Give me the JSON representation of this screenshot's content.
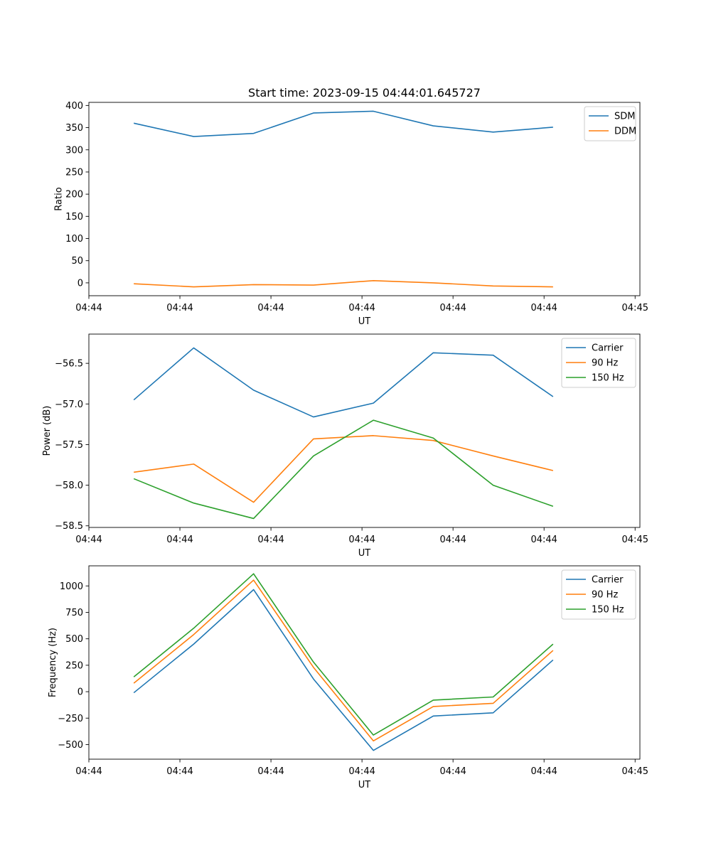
{
  "figure": {
    "title": "Start time: 2023-09-15 04:44:01.645727"
  },
  "chart_data": [
    {
      "type": "line",
      "id": "ratio",
      "ylabel": "Ratio",
      "xlabel": "UT",
      "x": [
        0,
        1,
        2,
        3,
        4,
        5,
        6,
        7
      ],
      "xlim": [
        -0.75,
        8.45
      ],
      "xticks": [
        -0.75,
        0.77,
        2.29,
        3.81,
        5.33,
        6.85,
        8.37
      ],
      "xtick_labels": [
        "04:44",
        "04:44",
        "04:44",
        "04:44",
        "04:44",
        "04:44",
        "04:45"
      ],
      "ylim": [
        -29,
        407
      ],
      "yticks": [
        0,
        50,
        100,
        150,
        200,
        250,
        300,
        350,
        400
      ],
      "ytick_labels": [
        "0",
        "50",
        "100",
        "150",
        "200",
        "250",
        "300",
        "350",
        "400"
      ],
      "legend_position": "top-right",
      "series": [
        {
          "name": "SDM",
          "color": "#1f77b4",
          "values": [
            360,
            330,
            337,
            383,
            387,
            354,
            340,
            351
          ]
        },
        {
          "name": "DDM",
          "color": "#ff7f0e",
          "values": [
            -2,
            -9,
            -4,
            -5,
            5,
            0,
            -7,
            -9
          ]
        }
      ]
    },
    {
      "type": "line",
      "id": "power",
      "ylabel": "Power (dB)",
      "xlabel": "UT",
      "x": [
        0,
        1,
        2,
        3,
        4,
        5,
        6,
        7
      ],
      "xlim": [
        -0.75,
        8.45
      ],
      "xticks": [
        -0.75,
        0.77,
        2.29,
        3.81,
        5.33,
        6.85,
        8.37
      ],
      "xtick_labels": [
        "04:44",
        "04:44",
        "04:44",
        "04:44",
        "04:44",
        "04:44",
        "04:45"
      ],
      "ylim": [
        -58.52,
        -56.14
      ],
      "yticks": [
        -58.5,
        -58.0,
        -57.5,
        -57.0,
        -56.5
      ],
      "ytick_labels": [
        "−58.5",
        "−58.0",
        "−57.5",
        "−57.0",
        "−56.5"
      ],
      "legend_position": "top-right",
      "series": [
        {
          "name": "Carrier",
          "color": "#1f77b4",
          "values": [
            -56.95,
            -56.31,
            -56.83,
            -57.16,
            -56.99,
            -56.37,
            -56.4,
            -56.91
          ]
        },
        {
          "name": "90 Hz",
          "color": "#ff7f0e",
          "values": [
            -57.84,
            -57.74,
            -58.21,
            -57.43,
            -57.39,
            -57.45,
            -57.64,
            -57.82
          ]
        },
        {
          "name": "150 Hz",
          "color": "#2ca02c",
          "values": [
            -57.92,
            -58.22,
            -58.41,
            -57.64,
            -57.2,
            -57.42,
            -58.0,
            -58.26
          ]
        }
      ]
    },
    {
      "type": "line",
      "id": "frequency",
      "ylabel": "Frequency (Hz)",
      "xlabel": "UT",
      "x": [
        0,
        1,
        2,
        3,
        4,
        5,
        6,
        7
      ],
      "xlim": [
        -0.75,
        8.45
      ],
      "xticks": [
        -0.75,
        0.77,
        2.29,
        3.81,
        5.33,
        6.85,
        8.37
      ],
      "xtick_labels": [
        "04:44",
        "04:44",
        "04:44",
        "04:44",
        "04:44",
        "04:44",
        "04:45"
      ],
      "ylim": [
        -638,
        1190
      ],
      "yticks": [
        -500,
        -250,
        0,
        250,
        500,
        750,
        1000
      ],
      "ytick_labels": [
        "−500",
        "−250",
        "0",
        "250",
        "500",
        "750",
        "1000"
      ],
      "legend_position": "top-right",
      "series": [
        {
          "name": "Carrier",
          "color": "#1f77b4",
          "values": [
            -10,
            450,
            965,
            120,
            -555,
            -230,
            -200,
            300
          ]
        },
        {
          "name": "90 Hz",
          "color": "#ff7f0e",
          "values": [
            80,
            540,
            1055,
            230,
            -465,
            -140,
            -110,
            390
          ]
        },
        {
          "name": "150 Hz",
          "color": "#2ca02c",
          "values": [
            140,
            600,
            1115,
            280,
            -410,
            -80,
            -50,
            450
          ]
        }
      ]
    }
  ]
}
